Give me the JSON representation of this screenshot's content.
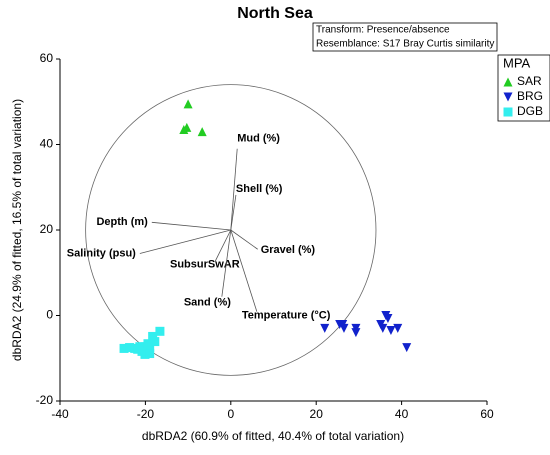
{
  "chart_data": {
    "type": "scatter",
    "title": "North Sea",
    "annotations": [
      "Transform: Presence/absence",
      "Resemblance: S17 Bray Curtis similarity"
    ],
    "x_label": "dbRDA2 (60.9% of fitted, 40.4% of total variation)",
    "y_label": "dbRDA2 (24.9% of fitted, 16.5% of total variation)",
    "xlim": [
      -40,
      60
    ],
    "ylim": [
      -20,
      60
    ],
    "xticks": [
      -40,
      -20,
      0,
      20,
      40,
      60
    ],
    "yticks": [
      -20,
      0,
      20,
      40,
      60
    ],
    "legend_title": "MPA",
    "legend_position": "outside right top",
    "series": [
      {
        "name": "SAR",
        "color": "#22cc22",
        "marker": "triangle-up",
        "x": [
          -10,
          -11,
          -10.3,
          -6.7
        ],
        "values": [
          49.5,
          43.5,
          44,
          43
        ]
      },
      {
        "name": "BRG",
        "color": "#1122cc",
        "marker": "triangle-down",
        "x": [
          22,
          25.5,
          26.5,
          26.2,
          29.3,
          29.3,
          35.1,
          36.3,
          36.8,
          35.6,
          37.5,
          39.1,
          41.2
        ],
        "values": [
          -3,
          -2.1,
          -3,
          -2.1,
          -3,
          -4,
          -2.1,
          0,
          -0.7,
          -3,
          -3.5,
          -3,
          -7.5
        ]
      },
      {
        "name": "DGB",
        "color": "#33eeee",
        "marker": "square",
        "x": [
          -25,
          -23.7,
          -22.5,
          -21.3,
          -20.1,
          -19,
          -17.8,
          -16.6,
          -18.3,
          -20.1,
          -20.8,
          -19,
          -21.8,
          -19.4
        ],
        "values": [
          -7.7,
          -7.5,
          -7.7,
          -7.3,
          -7.3,
          -7.5,
          -6.1,
          -3.7,
          -4.9,
          -9.1,
          -8.4,
          -8.9,
          -7.9,
          -6.6
        ]
      }
    ],
    "circle": {
      "center": [
        0,
        20
      ],
      "radius": 34
    },
    "vectors": [
      {
        "label": "Mud (%)",
        "x": 1.5,
        "y": 39
      },
      {
        "label": "Shell (%)",
        "x": 1.2,
        "y": 28.2
      },
      {
        "label": "Depth (m)",
        "x": -18.5,
        "y": 21.8
      },
      {
        "label": "Salinity (psu)",
        "x": -21.3,
        "y": 14.5
      },
      {
        "label": "Gravel (%)",
        "x": 6.3,
        "y": 15.5
      },
      {
        "label": "SubsurSwAR",
        "x": -3.7,
        "y": 12.6
      },
      {
        "label": "Sand (%)",
        "x": -2.1,
        "y": 4.4
      },
      {
        "label": "Temperature (°C)",
        "x": 6.1,
        "y": 0.9
      }
    ]
  }
}
